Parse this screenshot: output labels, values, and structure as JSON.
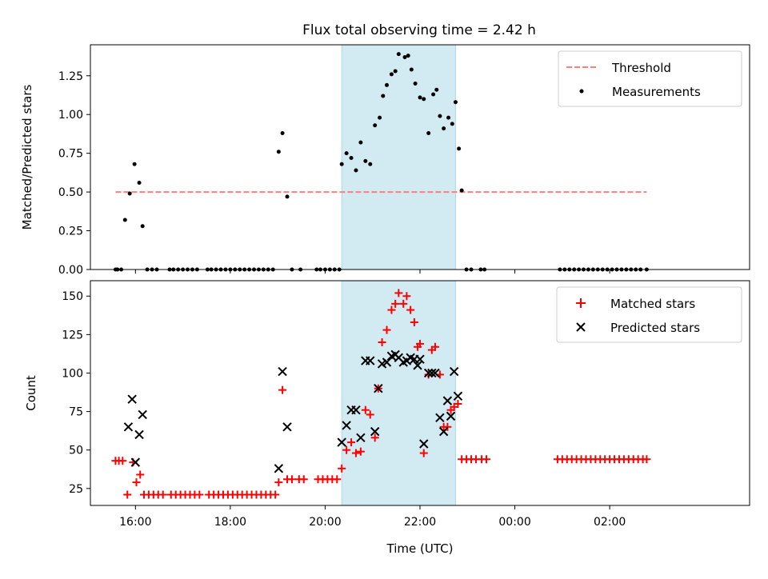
{
  "title": "Flux total observing time = 2.42 h",
  "colors": {
    "threshold": "#ff7f7f",
    "measurement": "#000000",
    "matched": "#ff0000",
    "predicted": "#000000",
    "span": "#add8e6"
  },
  "chart_data": [
    {
      "type": "scatter",
      "ylabel": "Matched/Predicted stars",
      "xlabel": "",
      "xlim": [
        -0.95,
        12.95
      ],
      "ylim": [
        0,
        1.45
      ],
      "yticks": [
        0.0,
        0.25,
        0.5,
        0.75,
        1.0,
        1.25
      ],
      "ytick_labels": [
        "0.00",
        "0.25",
        "0.50",
        "0.75",
        "1.00",
        "1.25"
      ],
      "highlight_span": [
        4.35,
        6.75
      ],
      "legend_position": "upper right",
      "threshold": {
        "label": "Threshold",
        "y": 0.5,
        "x_start": -0.42,
        "x_end": 10.78
      },
      "measurements": {
        "label": "Measurements",
        "points": [
          [
            -0.42,
            0
          ],
          [
            -0.38,
            0
          ],
          [
            -0.3,
            0
          ],
          [
            -0.22,
            0.32
          ],
          [
            -0.12,
            0.49
          ],
          [
            -0.02,
            0.68
          ],
          [
            0.08,
            0.56
          ],
          [
            0.15,
            0.28
          ],
          [
            0.25,
            0
          ],
          [
            0.35,
            0
          ],
          [
            0.45,
            0
          ],
          [
            0.72,
            0
          ],
          [
            0.8,
            0
          ],
          [
            0.9,
            0
          ],
          [
            1.0,
            0
          ],
          [
            1.1,
            0
          ],
          [
            1.2,
            0
          ],
          [
            1.3,
            0
          ],
          [
            1.52,
            0
          ],
          [
            1.6,
            0
          ],
          [
            1.7,
            0
          ],
          [
            1.8,
            0
          ],
          [
            1.9,
            0
          ],
          [
            2.0,
            0
          ],
          [
            2.1,
            0
          ],
          [
            2.2,
            0
          ],
          [
            2.3,
            0
          ],
          [
            2.4,
            0
          ],
          [
            2.5,
            0
          ],
          [
            2.6,
            0
          ],
          [
            2.7,
            0
          ],
          [
            2.8,
            0
          ],
          [
            2.9,
            0
          ],
          [
            3.02,
            0.76
          ],
          [
            3.1,
            0.88
          ],
          [
            3.2,
            0.47
          ],
          [
            3.3,
            0
          ],
          [
            3.48,
            0
          ],
          [
            3.82,
            0
          ],
          [
            3.9,
            0
          ],
          [
            4.0,
            0
          ],
          [
            4.1,
            0
          ],
          [
            4.2,
            0
          ],
          [
            4.3,
            0
          ],
          [
            4.35,
            0.68
          ],
          [
            4.45,
            0.75
          ],
          [
            4.55,
            0.72
          ],
          [
            4.65,
            0.64
          ],
          [
            4.75,
            0.82
          ],
          [
            4.85,
            0.7
          ],
          [
            4.95,
            0.68
          ],
          [
            5.05,
            0.93
          ],
          [
            5.15,
            0.98
          ],
          [
            5.22,
            1.12
          ],
          [
            5.3,
            1.19
          ],
          [
            5.4,
            1.26
          ],
          [
            5.48,
            1.28
          ],
          [
            5.55,
            1.39
          ],
          [
            5.68,
            1.37
          ],
          [
            5.75,
            1.38
          ],
          [
            5.82,
            1.29
          ],
          [
            5.9,
            1.2
          ],
          [
            6.0,
            1.11
          ],
          [
            6.08,
            1.1
          ],
          [
            6.18,
            0.88
          ],
          [
            6.28,
            1.13
          ],
          [
            6.35,
            1.16
          ],
          [
            6.42,
            0.99
          ],
          [
            6.5,
            0.91
          ],
          [
            6.6,
            0.98
          ],
          [
            6.68,
            0.94
          ],
          [
            6.75,
            1.08
          ],
          [
            6.82,
            0.78
          ],
          [
            6.88,
            0.51
          ],
          [
            6.98,
            0
          ],
          [
            7.08,
            0
          ],
          [
            7.28,
            0
          ],
          [
            7.36,
            0
          ],
          [
            8.95,
            0
          ],
          [
            9.05,
            0
          ],
          [
            9.15,
            0
          ],
          [
            9.25,
            0
          ],
          [
            9.35,
            0
          ],
          [
            9.45,
            0
          ],
          [
            9.55,
            0
          ],
          [
            9.65,
            0
          ],
          [
            9.75,
            0
          ],
          [
            9.85,
            0
          ],
          [
            9.95,
            0
          ],
          [
            10.05,
            0
          ],
          [
            10.15,
            0
          ],
          [
            10.25,
            0
          ],
          [
            10.35,
            0
          ],
          [
            10.45,
            0
          ],
          [
            10.55,
            0
          ],
          [
            10.65,
            0
          ],
          [
            10.78,
            0
          ]
        ]
      }
    },
    {
      "type": "scatter",
      "xlabel": "Time (UTC)",
      "ylabel": "Count",
      "xlim": [
        -0.95,
        12.95
      ],
      "ylim": [
        14,
        160
      ],
      "xticks": [
        0,
        2,
        4,
        6,
        8,
        10
      ],
      "xtick_labels": [
        "16:00",
        "18:00",
        "20:00",
        "22:00",
        "00:00",
        "02:00"
      ],
      "yticks": [
        25,
        50,
        75,
        100,
        125,
        150
      ],
      "ytick_labels": [
        "25",
        "50",
        "75",
        "100",
        "125",
        "150"
      ],
      "highlight_span": [
        4.35,
        6.75
      ],
      "legend_position": "upper right",
      "matched": {
        "label": "Matched stars",
        "points": [
          [
            -0.42,
            43
          ],
          [
            -0.35,
            43
          ],
          [
            -0.27,
            43
          ],
          [
            -0.17,
            21
          ],
          [
            -0.05,
            42
          ],
          [
            0.02,
            29
          ],
          [
            0.1,
            34
          ],
          [
            0.18,
            21
          ],
          [
            0.28,
            21
          ],
          [
            0.38,
            21
          ],
          [
            0.48,
            21
          ],
          [
            0.58,
            21
          ],
          [
            0.75,
            21
          ],
          [
            0.85,
            21
          ],
          [
            0.95,
            21
          ],
          [
            1.05,
            21
          ],
          [
            1.15,
            21
          ],
          [
            1.25,
            21
          ],
          [
            1.35,
            21
          ],
          [
            1.55,
            21
          ],
          [
            1.65,
            21
          ],
          [
            1.75,
            21
          ],
          [
            1.85,
            21
          ],
          [
            1.95,
            21
          ],
          [
            2.05,
            21
          ],
          [
            2.15,
            21
          ],
          [
            2.25,
            21
          ],
          [
            2.35,
            21
          ],
          [
            2.45,
            21
          ],
          [
            2.55,
            21
          ],
          [
            2.65,
            21
          ],
          [
            2.75,
            21
          ],
          [
            2.85,
            21
          ],
          [
            2.95,
            21
          ],
          [
            3.02,
            29
          ],
          [
            3.1,
            89
          ],
          [
            3.2,
            31
          ],
          [
            3.3,
            31
          ],
          [
            3.45,
            31
          ],
          [
            3.55,
            31
          ],
          [
            3.85,
            31
          ],
          [
            3.95,
            31
          ],
          [
            4.05,
            31
          ],
          [
            4.15,
            31
          ],
          [
            4.25,
            31
          ],
          [
            4.35,
            38
          ],
          [
            4.45,
            50
          ],
          [
            4.55,
            55
          ],
          [
            4.65,
            48
          ],
          [
            4.75,
            49
          ],
          [
            4.85,
            76
          ],
          [
            4.95,
            73
          ],
          [
            5.05,
            58
          ],
          [
            5.12,
            90
          ],
          [
            5.2,
            120
          ],
          [
            5.3,
            128
          ],
          [
            5.4,
            141
          ],
          [
            5.48,
            145
          ],
          [
            5.55,
            152
          ],
          [
            5.65,
            145
          ],
          [
            5.72,
            150
          ],
          [
            5.8,
            141
          ],
          [
            5.88,
            133
          ],
          [
            5.95,
            117
          ],
          [
            6.0,
            119
          ],
          [
            6.08,
            48
          ],
          [
            6.18,
            99
          ],
          [
            6.25,
            115
          ],
          [
            6.32,
            117
          ],
          [
            6.42,
            99
          ],
          [
            6.5,
            65
          ],
          [
            6.58,
            65
          ],
          [
            6.65,
            76
          ],
          [
            6.72,
            78
          ],
          [
            6.8,
            80
          ],
          [
            6.88,
            44
          ],
          [
            6.98,
            44
          ],
          [
            7.08,
            44
          ],
          [
            7.18,
            44
          ],
          [
            7.3,
            44
          ],
          [
            7.4,
            44
          ],
          [
            8.9,
            44
          ],
          [
            9.0,
            44
          ],
          [
            9.1,
            44
          ],
          [
            9.2,
            44
          ],
          [
            9.3,
            44
          ],
          [
            9.4,
            44
          ],
          [
            9.5,
            44
          ],
          [
            9.6,
            44
          ],
          [
            9.7,
            44
          ],
          [
            9.8,
            44
          ],
          [
            9.9,
            44
          ],
          [
            10.0,
            44
          ],
          [
            10.1,
            44
          ],
          [
            10.2,
            44
          ],
          [
            10.3,
            44
          ],
          [
            10.4,
            44
          ],
          [
            10.5,
            44
          ],
          [
            10.6,
            44
          ],
          [
            10.7,
            44
          ],
          [
            10.78,
            44
          ]
        ]
      },
      "predicted": {
        "label": "Predicted stars",
        "points": [
          [
            -0.15,
            65
          ],
          [
            -0.07,
            83
          ],
          [
            0.0,
            42
          ],
          [
            0.08,
            60
          ],
          [
            0.15,
            73
          ],
          [
            3.02,
            38
          ],
          [
            3.1,
            101
          ],
          [
            3.2,
            65
          ],
          [
            4.35,
            55
          ],
          [
            4.45,
            66
          ],
          [
            4.55,
            76
          ],
          [
            4.65,
            76
          ],
          [
            4.75,
            58
          ],
          [
            4.85,
            108
          ],
          [
            4.95,
            108
          ],
          [
            5.05,
            62
          ],
          [
            5.12,
            90
          ],
          [
            5.2,
            106
          ],
          [
            5.3,
            107
          ],
          [
            5.4,
            111
          ],
          [
            5.48,
            112
          ],
          [
            5.55,
            110
          ],
          [
            5.65,
            107
          ],
          [
            5.72,
            108
          ],
          [
            5.8,
            110
          ],
          [
            5.88,
            109
          ],
          [
            5.95,
            105
          ],
          [
            6.0,
            109
          ],
          [
            6.08,
            54
          ],
          [
            6.18,
            100
          ],
          [
            6.25,
            100
          ],
          [
            6.32,
            100
          ],
          [
            6.42,
            71
          ],
          [
            6.5,
            62
          ],
          [
            6.58,
            82
          ],
          [
            6.65,
            72
          ],
          [
            6.72,
            101
          ],
          [
            6.8,
            85
          ]
        ]
      }
    }
  ]
}
